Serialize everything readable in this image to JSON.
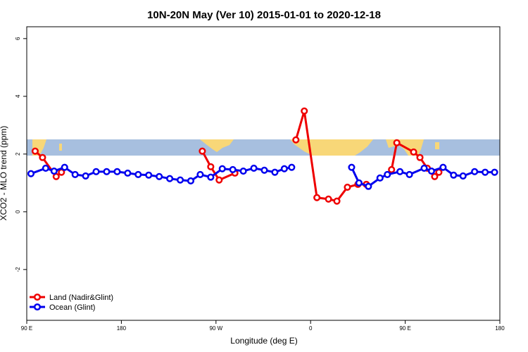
{
  "chart_data": {
    "type": "line",
    "title": "10N-20N May (Ver 10)   2015-01-01 to 2020-12-18",
    "x_label": "Longitude (deg E)",
    "y_label": "XCO2 - MLO trend (ppm)",
    "xlim": [
      90,
      540
    ],
    "ylim": [
      -3.76,
      6.41
    ],
    "xticks": [
      {
        "value": 90,
        "label": "90 E"
      },
      {
        "value": 180,
        "label": "180"
      },
      {
        "value": 270,
        "label": "90 W"
      },
      {
        "value": 360,
        "label": "0"
      },
      {
        "value": 450,
        "label": "90 E"
      },
      {
        "value": 540,
        "label": "180"
      }
    ],
    "yticks": [
      -2,
      0,
      2,
      4,
      6
    ],
    "legend": "bottom-left",
    "series": [
      {
        "name": "Land (Nadir&Glint)",
        "color": "#ee0000",
        "x": [
          98,
          105,
          118,
          123,
          null,
          257,
          265,
          273,
          288,
          null,
          346,
          354,
          366,
          377,
          385,
          395,
          405,
          413,
          null,
          437,
          442,
          458,
          464,
          471,
          478,
          482
        ],
        "values": [
          2.1,
          1.88,
          1.22,
          1.37,
          null,
          2.1,
          1.56,
          1.1,
          1.34,
          null,
          2.49,
          3.49,
          0.49,
          0.44,
          0.37,
          0.85,
          0.95,
          0.95,
          null,
          1.46,
          2.39,
          2.07,
          1.88,
          1.51,
          1.22,
          1.37
        ]
      },
      {
        "name": "Ocean (Glint)",
        "color": "#0000ee",
        "x": [
          94,
          108,
          116,
          126,
          136,
          146,
          156,
          166,
          176,
          186,
          196,
          206,
          216,
          226,
          236,
          246,
          255,
          265,
          276,
          286,
          296,
          306,
          316,
          326,
          335,
          342,
          null,
          399,
          406,
          415,
          426,
          433,
          445,
          454,
          468,
          475,
          486,
          496,
          505,
          516,
          526,
          535
        ],
        "values": [
          1.32,
          1.51,
          1.41,
          1.54,
          1.29,
          1.24,
          1.39,
          1.39,
          1.39,
          1.34,
          1.29,
          1.27,
          1.22,
          1.15,
          1.1,
          1.07,
          1.29,
          1.2,
          1.49,
          1.46,
          1.41,
          1.51,
          1.44,
          1.37,
          1.49,
          1.54,
          null,
          1.54,
          1.0,
          0.88,
          1.17,
          1.29,
          1.39,
          1.29,
          1.51,
          1.41,
          1.54,
          1.27,
          1.24,
          1.39,
          1.37,
          1.37
        ]
      }
    ]
  }
}
